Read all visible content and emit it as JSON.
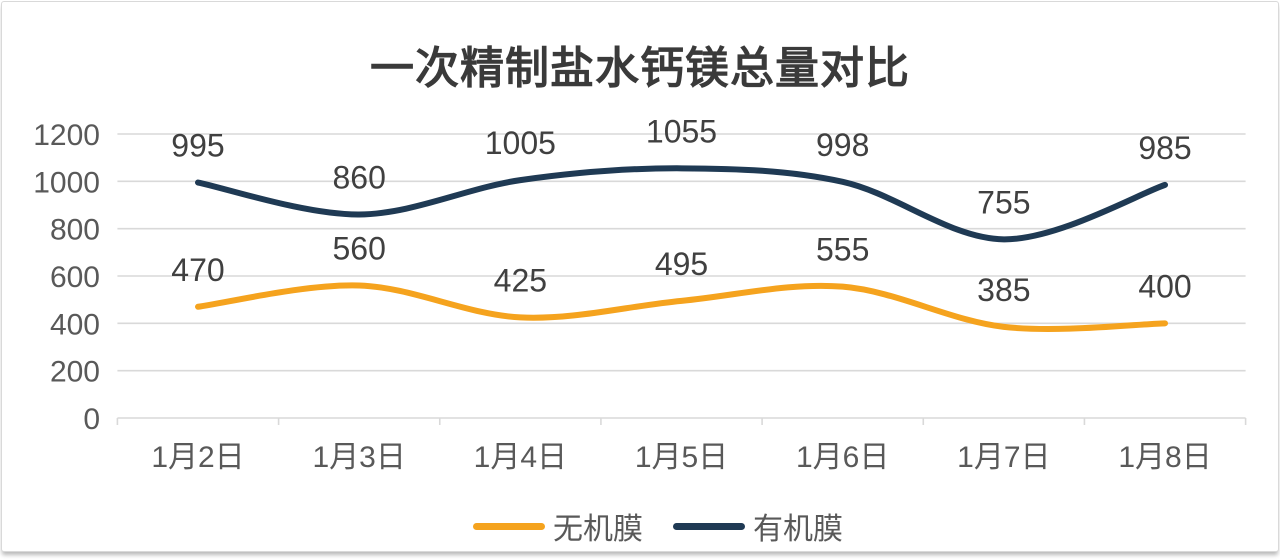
{
  "chart_data": {
    "type": "line",
    "title": "一次精制盐水钙镁总量对比",
    "categories": [
      "1月2日",
      "1月3日",
      "1月4日",
      "1月5日",
      "1月6日",
      "1月7日",
      "1月8日"
    ],
    "series": [
      {
        "name": "无机膜",
        "color": "#F5A31E",
        "values": [
          470,
          560,
          425,
          495,
          555,
          385,
          400
        ]
      },
      {
        "name": "有机膜",
        "color": "#1F3A54",
        "values": [
          995,
          860,
          1005,
          1055,
          998,
          755,
          985
        ]
      }
    ],
    "xlabel": "",
    "ylabel": "",
    "ylim": [
      0,
      1200
    ],
    "y_ticks": [
      0,
      200,
      400,
      600,
      800,
      1000,
      1200
    ],
    "grid": true,
    "smooth": true,
    "data_labels": true,
    "legend_position": "bottom"
  },
  "colors": {
    "grid": "#D9D9D9",
    "axis_label": "#595959",
    "data_label": "#404040",
    "title": "#3A3A3A",
    "card_border": "#D9D9D9",
    "card_background": "#FFFFFF"
  }
}
